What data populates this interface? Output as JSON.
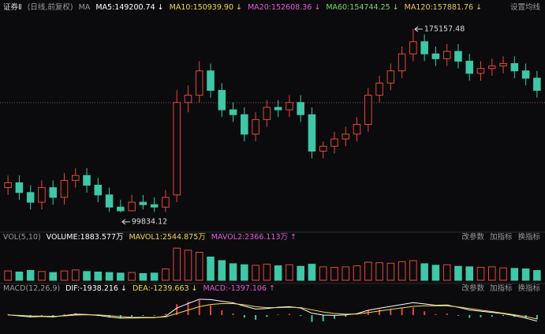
{
  "header": {
    "name": "证券Ⅱ",
    "mode": "(日线,前复权)",
    "ma_label": "MA",
    "ma_items": [
      {
        "text": "MA5:149200.74 ↓",
        "color": "#ffffff"
      },
      {
        "text": "MA10:150939.90 ↓",
        "color": "#f2d94e"
      },
      {
        "text": "MA20:152608.36 ↓",
        "color": "#e55ad8"
      },
      {
        "text": "MA60:154744.25 ↓",
        "color": "#7fd36b"
      },
      {
        "text": "MA120:157881.76 ↓",
        "color": "#e8c46a"
      }
    ],
    "settings": "设置均线"
  },
  "chart_data": [
    {
      "type": "candlestick",
      "up_color": "#e8453c",
      "down_color": "#3fc7a6",
      "ylim": [
        93000,
        180000
      ],
      "open": [
        110000,
        112000,
        108000,
        104000,
        110000,
        106000,
        113000,
        115000,
        111000,
        107000,
        102000,
        100500,
        104000,
        103000,
        102000,
        107000,
        145000,
        148000,
        158000,
        150000,
        142000,
        140000,
        132000,
        138000,
        143000,
        142000,
        145000,
        140000,
        125000,
        127000,
        130000,
        132000,
        136000,
        148000,
        153000,
        158000,
        165000,
        170000,
        165000,
        163000,
        166000,
        162000,
        157000,
        159000,
        160000,
        161000,
        158000,
        155000
      ],
      "high": [
        115000,
        115000,
        111000,
        113000,
        113000,
        116000,
        118000,
        118000,
        114000,
        110000,
        105000,
        107000,
        107000,
        106000,
        109000,
        150000,
        152000,
        162000,
        161000,
        153000,
        145000,
        143000,
        141000,
        146000,
        146000,
        148000,
        148000,
        143000,
        129000,
        133000,
        135000,
        139000,
        151000,
        156000,
        161000,
        168000,
        175157.48,
        173000,
        168000,
        169000,
        169000,
        165000,
        162000,
        163000,
        164000,
        164000,
        161000,
        158000
      ],
      "low": [
        107000,
        105000,
        101000,
        101000,
        103000,
        103000,
        110000,
        108000,
        104000,
        100000,
        99834.12,
        100200,
        101000,
        100000,
        100000,
        104000,
        141000,
        145000,
        147000,
        139000,
        137000,
        129000,
        129000,
        135000,
        139000,
        139000,
        137000,
        122000,
        122000,
        124000,
        127000,
        129000,
        133000,
        145000,
        150000,
        155000,
        162000,
        162000,
        160000,
        160000,
        159000,
        154000,
        154000,
        156000,
        157000,
        155000,
        152000,
        147000
      ],
      "close": [
        112000,
        108000,
        104000,
        110000,
        106000,
        113000,
        115000,
        111000,
        107000,
        102000,
        100500,
        104000,
        103000,
        102000,
        106000,
        145000,
        148000,
        158000,
        150000,
        142000,
        140000,
        132000,
        138000,
        143000,
        142000,
        145000,
        140000,
        125000,
        127000,
        130000,
        132000,
        136000,
        148000,
        153000,
        158000,
        165000,
        170000,
        165000,
        163000,
        166000,
        162000,
        157000,
        159000,
        160000,
        161000,
        158000,
        155000,
        150000
      ]
    },
    {
      "type": "bar",
      "title": "VOL(5,10)",
      "legend": [
        {
          "text": "VOLUME:1883.577万",
          "color": "#ffffff"
        },
        {
          "text": "MAVOL1:2544.875万",
          "color": "#f2d94e"
        },
        {
          "text": "MAVOL2:2366.113万 ↑",
          "color": "#e55ad8"
        }
      ],
      "controls": [
        "改参数",
        "加指标",
        "换指标"
      ],
      "ylim": [
        0,
        7000
      ],
      "values": [
        1800,
        1600,
        1900,
        1700,
        1500,
        1800,
        2000,
        1700,
        1600,
        1500,
        1400,
        1500,
        1300,
        1400,
        2200,
        6200,
        5800,
        5400,
        4500,
        3800,
        3200,
        3000,
        2900,
        3100,
        2800,
        3000,
        2700,
        3100,
        2600,
        2500,
        2600,
        2800,
        3500,
        3400,
        3300,
        3600,
        3800,
        3200,
        2900,
        3000,
        2700,
        2600,
        2500,
        2600,
        2400,
        2300,
        2200,
        1884
      ]
    },
    {
      "type": "macd",
      "title": "MACD(12,26,9)",
      "legend": [
        {
          "text": "DIF:-1938.216 ↓",
          "color": "#ffffff"
        },
        {
          "text": "DEA:-1239.663 ↓",
          "color": "#f2d94e"
        },
        {
          "text": "MACD:-1397.106 ↑",
          "color": "#e55ad8"
        }
      ],
      "controls": [
        "改参数",
        "加指标",
        "换指标"
      ],
      "ylim": [
        -5600,
        5600
      ],
      "values": [
        200,
        -300,
        -600,
        -200,
        -400,
        300,
        600,
        200,
        -300,
        -800,
        -1000,
        -500,
        -300,
        -200,
        400,
        3500,
        4200,
        4800,
        3200,
        1500,
        500,
        -800,
        -1500,
        -600,
        200,
        400,
        -300,
        -2200,
        -2000,
        -1200,
        -500,
        200,
        1500,
        1800,
        2000,
        2200,
        2400,
        1200,
        300,
        500,
        -200,
        -900,
        -700,
        -500,
        -300,
        -600,
        -1000,
        -1397.106
      ],
      "series": [
        {
          "name": "DIF",
          "color": "#ffffff",
          "values": [
            100,
            -250,
            -600,
            -450,
            -600,
            -150,
            300,
            200,
            -100,
            -600,
            -1000,
            -950,
            -900,
            -850,
            -400,
            2250,
            3700,
            5100,
            5000,
            4450,
            3950,
            2900,
            1950,
            2100,
            2500,
            2700,
            2250,
            600,
            0,
            -100,
            50,
            450,
            1550,
            2200,
            2800,
            3400,
            4000,
            3600,
            3150,
            3250,
            2500,
            1650,
            1250,
            850,
            450,
            -200,
            -1000,
            -1938.216
          ]
        },
        {
          "name": "DEA",
          "color": "#f2d94e",
          "values": [
            0,
            -100,
            -300,
            -350,
            -400,
            -300,
            0,
            100,
            50,
            -200,
            -500,
            -700,
            -750,
            -750,
            -600,
            500,
            1600,
            2700,
            3400,
            3700,
            3700,
            3300,
            2700,
            2400,
            2400,
            2500,
            2400,
            1700,
            1000,
            500,
            300,
            350,
            800,
            1300,
            1800,
            2300,
            2800,
            3000,
            3000,
            3000,
            2600,
            2100,
            1600,
            1100,
            600,
            100,
            -500,
            -1239.663
          ]
        }
      ]
    }
  ]
}
